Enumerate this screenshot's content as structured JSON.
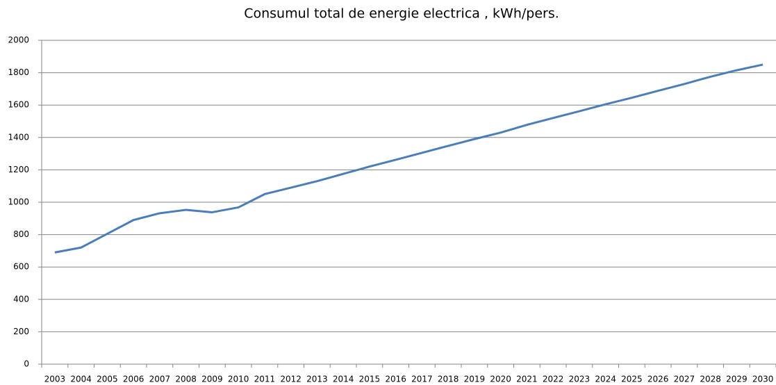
{
  "chart_data": {
    "type": "line",
    "title": "Consumul total de energie electrica , kWh/pers.",
    "categories": [
      "2003",
      "2004",
      "2005",
      "2006",
      "2007",
      "2008",
      "2009",
      "2010",
      "2011",
      "2012",
      "2013",
      "2014",
      "2015",
      "2016",
      "2017",
      "2018",
      "2019",
      "2020",
      "2021",
      "2022",
      "2023",
      "2024",
      "2025",
      "2026",
      "2027",
      "2028",
      "2029",
      "2030"
    ],
    "series": [
      {
        "name": "Consumul total de energie electrica",
        "color": "#4a7ebb",
        "values": [
          690,
          720,
          805,
          890,
          932,
          953,
          938,
          968,
          1050,
          1090,
          1130,
          1175,
          1220,
          1262,
          1305,
          1348,
          1390,
          1430,
          1478,
          1520,
          1562,
          1605,
          1645,
          1688,
          1730,
          1775,
          1815,
          1850
        ]
      }
    ],
    "ylim": [
      0,
      2000
    ],
    "yticks": [
      0,
      200,
      400,
      600,
      800,
      1000,
      1200,
      1400,
      1600,
      1800,
      2000
    ],
    "grid": true
  }
}
